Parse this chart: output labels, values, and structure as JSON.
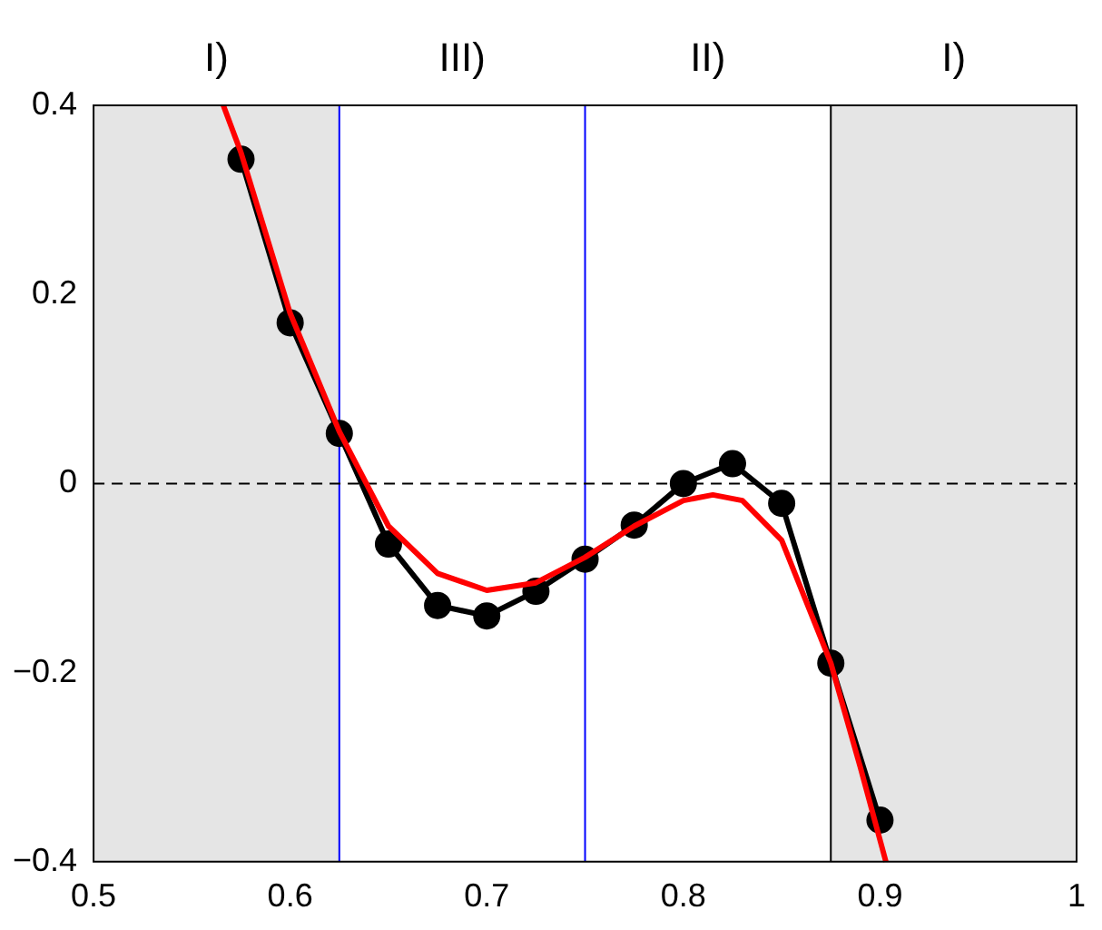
{
  "chart_data": {
    "type": "line",
    "xlim": [
      0.5,
      1
    ],
    "xticks": [
      0.5,
      0.6,
      0.7,
      0.8,
      0.9,
      1
    ],
    "ylim": [
      -0.4,
      0.4
    ],
    "yticks": [
      -0.4,
      -0.2,
      0,
      0.2,
      0.4
    ],
    "grid": false,
    "legend": false,
    "series": [
      {
        "color": "#000000",
        "marker": "circle",
        "line_style": "solid",
        "x": [
          0.575,
          0.6,
          0.625,
          0.65,
          0.675,
          0.7,
          0.725,
          0.75,
          0.775,
          0.8,
          0.825,
          0.85,
          0.875,
          0.9
        ],
        "values": [
          0.343,
          0.17,
          0.053,
          -0.064,
          -0.129,
          -0.14,
          -0.114,
          -0.08,
          -0.044,
          0.0,
          0.021,
          -0.021,
          -0.19,
          -0.356
        ]
      },
      {
        "color": "#ff0000",
        "marker": "none",
        "line_style": "solid",
        "x": [
          0.566,
          0.575,
          0.6,
          0.625,
          0.65,
          0.675,
          0.7,
          0.725,
          0.75,
          0.775,
          0.8,
          0.815,
          0.83,
          0.85,
          0.875,
          0.89,
          0.903
        ],
        "values": [
          0.4,
          0.35,
          0.18,
          0.055,
          -0.045,
          -0.095,
          -0.113,
          -0.105,
          -0.078,
          -0.045,
          -0.018,
          -0.012,
          -0.018,
          -0.06,
          -0.19,
          -0.3,
          -0.4
        ]
      }
    ],
    "bands": [
      {
        "axis": "x",
        "from": 0.5,
        "to": 0.625,
        "label": "I)",
        "color": "#e5e5e5"
      },
      {
        "axis": "x",
        "from": 0.875,
        "to": 1,
        "label": "I)",
        "color": "#e5e5e5"
      }
    ],
    "annotations": [
      "III)",
      "II)"
    ],
    "ref_lines": [
      {
        "axis": "x",
        "value": 0.625,
        "color": "#0000ff",
        "line_style": "solid"
      },
      {
        "axis": "x",
        "value": 0.75,
        "color": "#0000ff",
        "line_style": "solid"
      },
      {
        "axis": "x",
        "value": 0.875,
        "color": "#000000",
        "line_style": "solid"
      },
      {
        "axis": "y",
        "value": 0,
        "color": "#000000",
        "line_style": "dashed"
      }
    ]
  }
}
